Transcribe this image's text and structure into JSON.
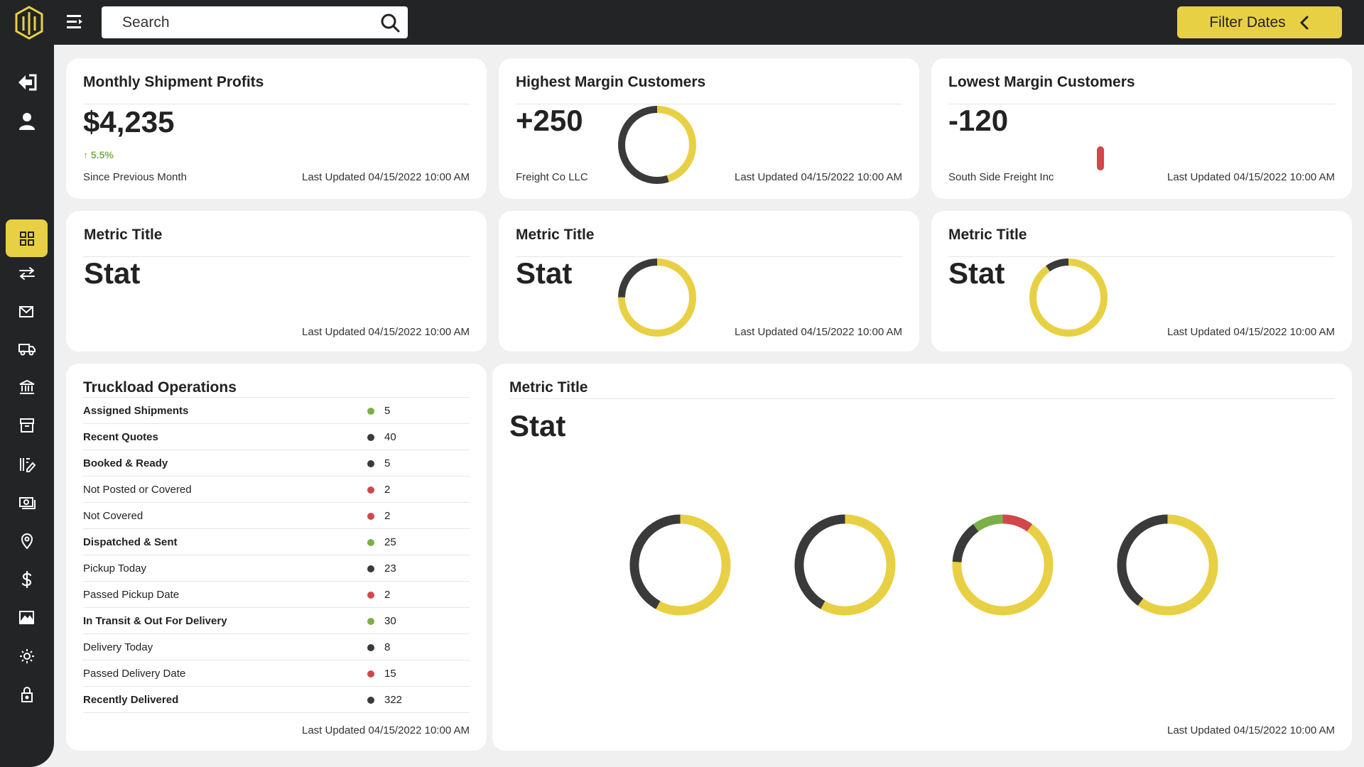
{
  "header": {
    "search_placeholder": "Search",
    "filter_label": "Filter Dates"
  },
  "colors": {
    "yellow": "#e8d044",
    "dark": "#3a3a3a",
    "green": "#7bb049",
    "red": "#d0484a"
  },
  "sidebar": {
    "items": [
      {
        "icon": "logout-icon"
      },
      {
        "icon": "user-icon"
      },
      {
        "icon": "dashboard-grid-icon",
        "active": true
      },
      {
        "icon": "transfer-arrows-icon"
      },
      {
        "icon": "mail-icon"
      },
      {
        "icon": "truck-icon"
      },
      {
        "icon": "bank-icon"
      },
      {
        "icon": "archive-icon"
      },
      {
        "icon": "edit-list-icon"
      },
      {
        "icon": "cash-icon"
      },
      {
        "icon": "location-pin-icon"
      },
      {
        "icon": "dollar-icon"
      },
      {
        "icon": "image-chart-icon"
      },
      {
        "icon": "settings-gear-icon"
      },
      {
        "icon": "lock-icon"
      }
    ]
  },
  "cards": {
    "monthly": {
      "title": "Monthly Shipment Profits",
      "stat": "$4,235",
      "trend": "5.5%",
      "caption": "Since Previous Month",
      "updated": "Last Updated 04/15/2022 10:00 AM"
    },
    "highest": {
      "title": "Highest Margin Customers",
      "stat": "+250",
      "caption": "Freight Co LLC",
      "updated": "Last Updated 04/15/2022 10:00 AM"
    },
    "lowest": {
      "title": "Lowest Margin Customers",
      "stat": "-120",
      "caption": "South Side Freight Inc",
      "updated": "Last Updated 04/15/2022 10:00 AM"
    },
    "metric1": {
      "title": "Metric Title",
      "stat": "Stat",
      "updated": "Last Updated 04/15/2022 10:00 AM"
    },
    "metric2": {
      "title": "Metric Title",
      "stat": "Stat",
      "updated": "Last Updated 04/15/2022 10:00 AM"
    },
    "metric3": {
      "title": "Metric Title",
      "stat": "Stat",
      "updated": "Last Updated 04/15/2022 10:00 AM"
    },
    "truckload": {
      "title": "Truckload Operations",
      "updated": "Last Updated 04/15/2022 10:00 AM",
      "rows": [
        {
          "label": "Assigned Shipments",
          "value": "5",
          "status": "green",
          "bold": true
        },
        {
          "label": "Recent Quotes",
          "value": "40",
          "status": "dark",
          "bold": true
        },
        {
          "label": "Booked & Ready",
          "value": "5",
          "status": "dark",
          "bold": true
        },
        {
          "label": "Not Posted or Covered",
          "value": "2",
          "status": "red",
          "bold": false
        },
        {
          "label": "Not Covered",
          "value": "2",
          "status": "red",
          "bold": false
        },
        {
          "label": "Dispatched & Sent",
          "value": "25",
          "status": "green",
          "bold": true
        },
        {
          "label": "Pickup Today",
          "value": "23",
          "status": "dark",
          "bold": false
        },
        {
          "label": "Passed Pickup Date",
          "value": "2",
          "status": "red",
          "bold": false
        },
        {
          "label": "In Transit & Out For Delivery",
          "value": "30",
          "status": "green",
          "bold": true
        },
        {
          "label": "Delivery Today",
          "value": "8",
          "status": "dark",
          "bold": false
        },
        {
          "label": "Passed Delivery Date",
          "value": "15",
          "status": "red",
          "bold": false
        },
        {
          "label": "Recently Delivered",
          "value": "322",
          "status": "dark",
          "bold": true
        }
      ]
    },
    "metric_wide": {
      "title": "Metric Title",
      "stat": "Stat",
      "updated": "Last Updated 04/15/2022 10:00 AM"
    }
  },
  "donuts": {
    "highest": [
      {
        "frac": 0.45,
        "color": "yellow"
      },
      {
        "frac": 0.55,
        "color": "dark"
      }
    ],
    "metric2": [
      {
        "frac": 0.75,
        "color": "yellow"
      },
      {
        "frac": 0.25,
        "color": "dark"
      }
    ],
    "metric3": [
      {
        "frac": 0.9,
        "color": "yellow"
      },
      {
        "frac": 0.1,
        "color": "dark"
      }
    ],
    "wide1": [
      {
        "frac": 0.58,
        "color": "yellow"
      },
      {
        "frac": 0.42,
        "color": "dark"
      }
    ],
    "wide2": [
      {
        "frac": 0.58,
        "color": "yellow"
      },
      {
        "frac": 0.42,
        "color": "dark"
      }
    ],
    "wide3": [
      {
        "frac": 0.1,
        "color": "red"
      },
      {
        "frac": 0.66,
        "color": "yellow"
      },
      {
        "frac": 0.14,
        "color": "dark"
      },
      {
        "frac": 0.1,
        "color": "green"
      }
    ],
    "wide4": [
      {
        "frac": 0.6,
        "color": "yellow"
      },
      {
        "frac": 0.4,
        "color": "dark"
      }
    ]
  },
  "lowest_bar": {
    "color": "red"
  }
}
